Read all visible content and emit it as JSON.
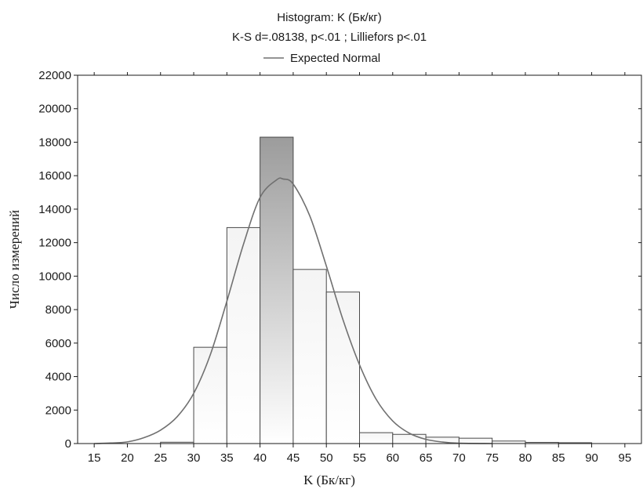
{
  "chart_data": {
    "type": "bar",
    "title": "Histogram: K (Бк/кг)",
    "subtitle": "K-S d=.08138, p<.01 ; Lilliefors p<.01",
    "legend": {
      "label": "Expected Normal",
      "placement": "top-center"
    },
    "xlabel": "K (Бк/кг)",
    "ylabel": "Число измерений",
    "xlim": [
      12.5,
      97.5
    ],
    "ylim": [
      0,
      22000
    ],
    "x_ticks": [
      15,
      20,
      25,
      30,
      35,
      40,
      45,
      50,
      55,
      60,
      65,
      70,
      75,
      80,
      85,
      90,
      95
    ],
    "y_ticks": [
      0,
      2000,
      4000,
      6000,
      8000,
      10000,
      12000,
      14000,
      16000,
      18000,
      20000,
      22000
    ],
    "bins": [
      {
        "from": 15,
        "to": 20,
        "value": 0
      },
      {
        "from": 20,
        "to": 25,
        "value": 0
      },
      {
        "from": 25,
        "to": 30,
        "value": 80
      },
      {
        "from": 30,
        "to": 35,
        "value": 5750
      },
      {
        "from": 35,
        "to": 40,
        "value": 12900
      },
      {
        "from": 40,
        "to": 45,
        "value": 18300
      },
      {
        "from": 45,
        "to": 50,
        "value": 10400
      },
      {
        "from": 50,
        "to": 55,
        "value": 9050
      },
      {
        "from": 55,
        "to": 60,
        "value": 650
      },
      {
        "from": 60,
        "to": 65,
        "value": 550
      },
      {
        "from": 65,
        "to": 70,
        "value": 380
      },
      {
        "from": 70,
        "to": 75,
        "value": 320
      },
      {
        "from": 75,
        "to": 80,
        "value": 150
      },
      {
        "from": 80,
        "to": 85,
        "value": 70
      },
      {
        "from": 85,
        "to": 90,
        "value": 50
      },
      {
        "from": 90,
        "to": 95,
        "value": 0
      }
    ],
    "expected_normal": {
      "name": "Expected Normal",
      "x": [
        15,
        17.5,
        20,
        22.5,
        25,
        27.5,
        30,
        32.5,
        35,
        37.5,
        40,
        42.5,
        43.5,
        45,
        47.5,
        50,
        52.5,
        55,
        57.5,
        60,
        62.5,
        65,
        67.5,
        70,
        75
      ],
      "y": [
        0,
        30,
        100,
        350,
        800,
        1600,
        3000,
        5300,
        8500,
        11900,
        14700,
        15750,
        15800,
        15500,
        13600,
        10600,
        7400,
        4700,
        2650,
        1350,
        620,
        250,
        90,
        20,
        0
      ]
    },
    "grid": false,
    "colors": {
      "bar_fill_top": "#f4f4f4",
      "bar_fill_bottom": "#ffffff",
      "peak_bar_top": "#9c9c9c",
      "peak_bar_bottom": "#ffffff",
      "bar_stroke": "#4a4a4a",
      "curve": "#707070",
      "axis": "#1a1a1a"
    }
  }
}
